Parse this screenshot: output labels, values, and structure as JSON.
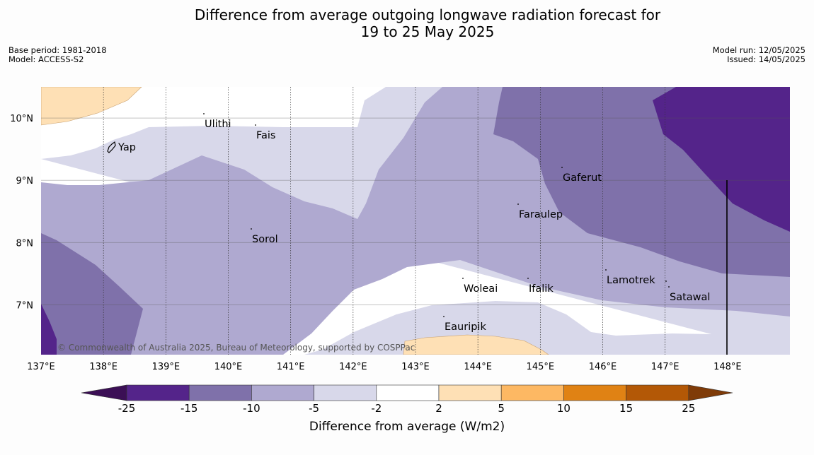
{
  "title": {
    "line1": "Difference from average outgoing longwave radiation forecast for",
    "line2": "19 to 25 May 2025"
  },
  "meta_left": {
    "base_period": "Base period: 1981-2018",
    "model": "Model: ACCESS-S2"
  },
  "meta_right": {
    "model_run": "Model run: 12/05/2025",
    "issued": "Issued: 14/05/2025"
  },
  "map": {
    "lon_labels": [
      "137°E",
      "138°E",
      "139°E",
      "140°E",
      "141°E",
      "142°E",
      "143°E",
      "144°E",
      "145°E",
      "146°E",
      "147°E",
      "148°E"
    ],
    "lat_labels": [
      "10°N",
      "9°N",
      "8°N",
      "7°N"
    ],
    "places": [
      {
        "name": "Ulithi"
      },
      {
        "name": "Fais"
      },
      {
        "name": "Yap"
      },
      {
        "name": "Gaferut"
      },
      {
        "name": "Faraulep"
      },
      {
        "name": "Sorol"
      },
      {
        "name": "Lamotrek"
      },
      {
        "name": "Woleai"
      },
      {
        "name": "Ifalik"
      },
      {
        "name": "Satawal"
      },
      {
        "name": "Eauripik"
      }
    ],
    "copyright": "© Commonwealth of Australia 2025, Bureau of Meteorology, supported by COSPPac"
  },
  "colorbar": {
    "title": "Difference from average (W/m2)",
    "ticks": [
      "-25",
      "-15",
      "-10",
      "-5",
      "-2",
      "2",
      "5",
      "10",
      "15",
      "25"
    ],
    "colors": {
      "below_min": "#3b0f55",
      "lt_-15": "#54248a",
      "-15_-10": "#7f71aa",
      "-10_-5": "#afa9d0",
      "-5_-2": "#d8d8ea",
      "-2_2": "#ffffff",
      "2_5": "#fee0b5",
      "5_10": "#fdb863",
      "10_15": "#e08214",
      "15_25": "#b35806",
      "above_max": "#7f3b08"
    }
  }
}
